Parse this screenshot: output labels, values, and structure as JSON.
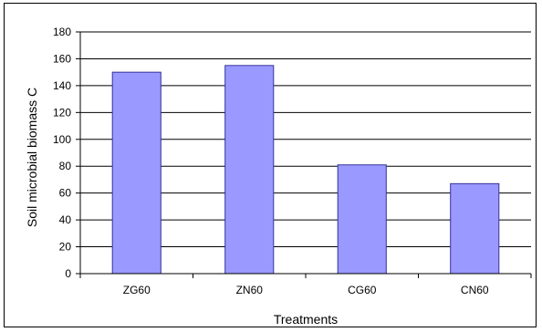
{
  "chart_data": {
    "type": "bar",
    "title": "",
    "xlabel": "Treatments",
    "ylabel": "Soil microbial biomass C",
    "categories": [
      "ZG60",
      "ZN60",
      "CG60",
      "CN60"
    ],
    "values": [
      150,
      155,
      81,
      67
    ],
    "ylim": [
      0,
      180
    ],
    "yticks": [
      0,
      20,
      40,
      60,
      80,
      100,
      120,
      140,
      160,
      180
    ],
    "grid": true,
    "legend": "none",
    "bar_color": "#9999ff",
    "bar_edge_color": "#333399"
  }
}
